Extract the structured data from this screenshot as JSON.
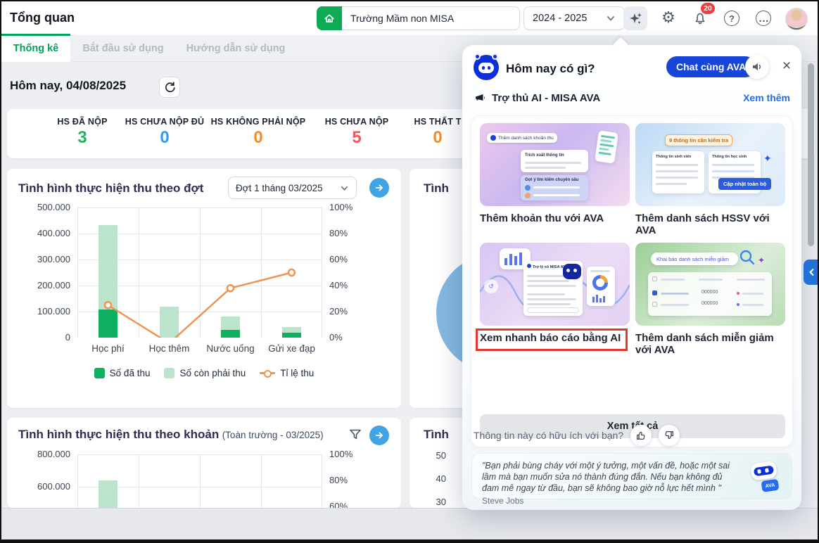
{
  "header": {
    "title": "Tổng quan",
    "school_name": "Trường Mầm non MISA",
    "school_year": "2024 - 2025",
    "notification_badge": "20",
    "question_glyph": "?",
    "dots_glyph": "…",
    "gear_glyph": "⚙"
  },
  "tabs": [
    {
      "label": "Thống kê"
    },
    {
      "label": "Bắt đầu sử dụng"
    },
    {
      "label": "Hướng dẫn sử dụng"
    }
  ],
  "date_row": {
    "label": "Hôm nay, 04/08/2025"
  },
  "stats": [
    {
      "label": "HS ĐÃ NỘP",
      "value": "3",
      "color": "#21b45f"
    },
    {
      "label": "HS CHƯA NỘP ĐỦ",
      "value": "0",
      "color": "#2e9bf7"
    },
    {
      "label": "HS KHÔNG PHẢI NỘP",
      "value": "0",
      "color": "#f68b2c"
    },
    {
      "label": "HS CHƯA NỘP",
      "value": "5",
      "color": "#f2595f"
    },
    {
      "label": "HS THẤT T",
      "value": "0",
      "color": "#f68b2c"
    }
  ],
  "chart_card_1": {
    "title": "Tình hình thực hiện thu theo đợt",
    "period_selector": "Đợt 1 tháng 03/2025",
    "legend": [
      "Số đã thu",
      "Số còn phải thu",
      "Tỉ lệ thu"
    ]
  },
  "chart_card_2": {
    "title": "Tình hình thực hiện thu theo khoản",
    "subtitle": "(Toàn trường - 03/2025)"
  },
  "partial_cards": {
    "top_title": "Tình",
    "bottom_title": "Tình",
    "bottom_yticks": [
      "50",
      "40",
      "30"
    ]
  },
  "ava_panel": {
    "title": "Hôm nay có gì?",
    "chat_button": "Chat cùng AVA",
    "section_title": "Trợ thủ AI - MISA AVA",
    "see_more": "Xem thêm",
    "tiles": [
      {
        "label": "Thêm khoản thu với AVA",
        "chip": "Thêm danh sách khoản thu",
        "panel1": "Trích xuất thông tin",
        "panel2": "Gợi ý tìm kiếm chuyên sâu"
      },
      {
        "label": "Thêm danh sách HSSV với AVA",
        "chip": "9 thông tin cần kiểm tra",
        "col1": "Thông tin sinh viên",
        "col2": "Thông tin học sinh",
        "button": "Cập nhật toàn bộ"
      },
      {
        "label": "Xem nhanh báo cáo bằng AI",
        "chip": "Trợ lý số MISA AVA"
      },
      {
        "label": "Thêm danh sách miễn giảm với AVA",
        "chip": "Khai báo danh sách miễn giảm",
        "num1": "000000",
        "num2": "000000"
      }
    ],
    "view_all_button": "Xem tất cả",
    "feedback_question": "Thông tin này có hữu ích với bạn?",
    "quote": {
      "text": "\"Bạn phải bùng cháy với một ý tưởng, một vấn đề, hoặc một sai lầm mà bạn muốn sửa nó thành đúng đắn. Nếu bạn không đủ đam mê ngay từ đầu, bạn sẽ không bao giờ nỗ lực hết mình \"",
      "author": "Steve Jobs"
    }
  },
  "chart_data": [
    {
      "type": "bar+line",
      "title": "Tình hình thực hiện thu theo đợt",
      "categories": [
        "Học phí",
        "Học thêm",
        "Nước uống",
        "Gửi xe đạp"
      ],
      "series": [
        {
          "name": "Số đã thu",
          "type": "bar",
          "stack": true,
          "color": "#0eb05f",
          "values": [
            108000,
            0,
            30000,
            20000
          ]
        },
        {
          "name": "Số còn phải thu",
          "type": "bar",
          "stack": true,
          "color": "#bce3cb",
          "values": [
            324000,
            120000,
            50000,
            20000
          ]
        },
        {
          "name": "Tỉ lệ thu",
          "type": "line",
          "axis": "right",
          "color": "#ef9350",
          "values_pct": [
            25,
            0,
            38,
            50
          ]
        }
      ],
      "ylim_left": [
        0,
        500000
      ],
      "ylim_right_pct": [
        0,
        100
      ],
      "yticks_left": [
        "500.000",
        "400.000",
        "300.000",
        "200.000",
        "100.000",
        "0"
      ],
      "yticks_right": [
        "100%",
        "80%",
        "60%",
        "40%",
        "20%",
        "0%"
      ],
      "grid": true,
      "legend_position": "bottom"
    },
    {
      "type": "bar",
      "title": "Tình hình thực hiện thu theo khoản",
      "subtitle": "(Toàn trường - 03/2025)",
      "visibility": "partially cut off at bottom of viewport",
      "categories_visible": [],
      "series": [
        {
          "name": "Số còn phải thu",
          "color": "#bce3cb",
          "values_visible": [
            640000
          ]
        }
      ],
      "ylim_left": [
        0,
        800000
      ],
      "yticks_left_visible": [
        "800.000",
        "600.000"
      ],
      "yticks_right_visible": [
        "100%",
        "80%",
        "60%"
      ],
      "grid": true
    }
  ]
}
